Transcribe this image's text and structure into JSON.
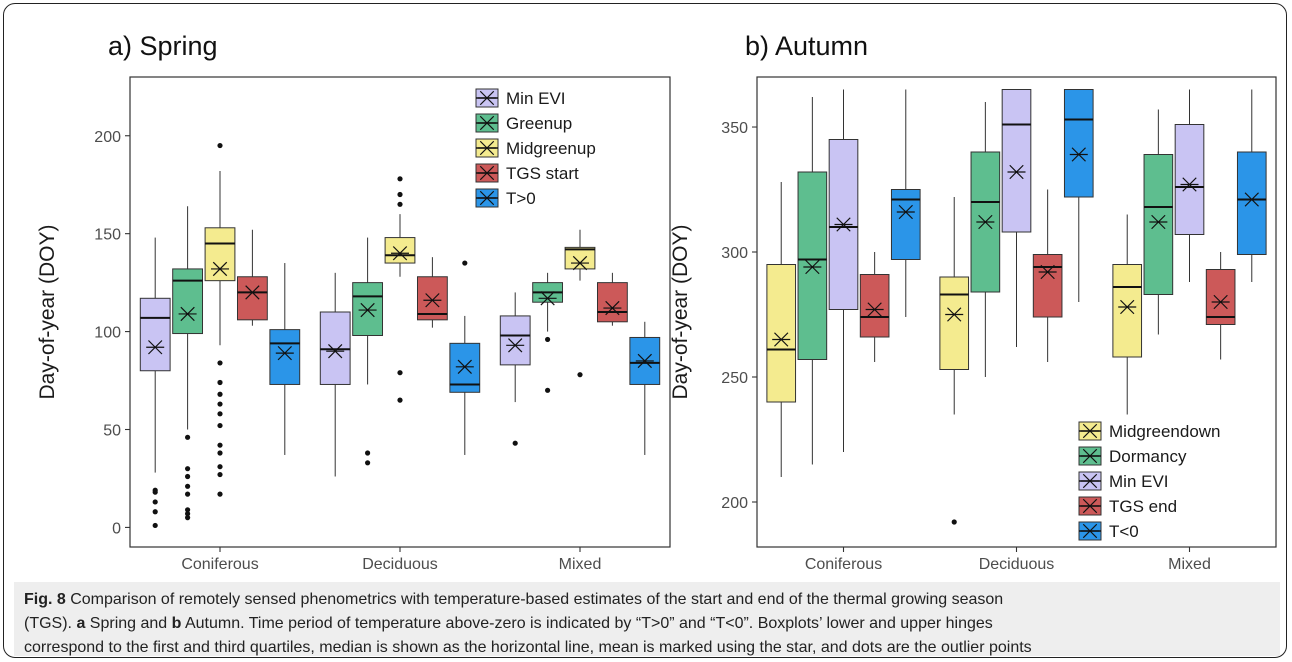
{
  "chart_data": [
    {
      "type": "box",
      "title": "a) Spring",
      "xlabel": "",
      "ylabel": "Day-of-year (DOY)",
      "ylim": [
        -10,
        230
      ],
      "yticks": [
        0,
        50,
        100,
        150,
        200
      ],
      "grid": false,
      "legend_position": "top-right",
      "categories": [
        "Coniferous",
        "Deciduous",
        "Mixed"
      ],
      "series": [
        {
          "name": "Min EVI",
          "color": "#c9c4f3",
          "boxes": [
            {
              "min": 28,
              "q1": 80,
              "median": 107,
              "q3": 117,
              "max": 148,
              "mean": 92,
              "outliers": [
                1,
                8,
                13,
                18,
                19
              ]
            },
            {
              "min": 26,
              "q1": 73,
              "median": 91,
              "q3": 110,
              "max": 130,
              "mean": 90,
              "outliers": []
            },
            {
              "min": 64,
              "q1": 83,
              "median": 98,
              "q3": 108,
              "max": 120,
              "mean": 93,
              "outliers": [
                43
              ]
            }
          ]
        },
        {
          "name": "Greenup",
          "color": "#5ebe8f",
          "boxes": [
            {
              "min": 50,
              "q1": 99,
              "median": 126,
              "q3": 132,
              "max": 164,
              "mean": 109,
              "outliers": [
                5,
                7,
                9,
                17,
                21,
                26,
                30,
                46
              ]
            },
            {
              "min": 73,
              "q1": 98,
              "median": 118,
              "q3": 125,
              "max": 148,
              "mean": 111,
              "outliers": [
                33,
                38
              ]
            },
            {
              "min": 100,
              "q1": 115,
              "median": 120,
              "q3": 125,
              "max": 130,
              "mean": 117,
              "outliers": [
                70,
                96
              ]
            }
          ]
        },
        {
          "name": "Midgreenup",
          "color": "#f4eb8f",
          "boxes": [
            {
              "min": 93,
              "q1": 126,
              "median": 145,
              "q3": 153,
              "max": 182,
              "mean": 132,
              "outliers": [
                17,
                27,
                31,
                38,
                42,
                52,
                58,
                63,
                68,
                74,
                84,
                195
              ]
            },
            {
              "min": 128,
              "q1": 135,
              "median": 139,
              "q3": 148,
              "max": 160,
              "mean": 140,
              "outliers": [
                65,
                79,
                165,
                170,
                178
              ]
            },
            {
              "min": 126,
              "q1": 132,
              "median": 142,
              "q3": 143,
              "max": 152,
              "mean": 135,
              "outliers": [
                78
              ]
            }
          ]
        },
        {
          "name": "TGS start",
          "color": "#cc5959",
          "boxes": [
            {
              "min": 103,
              "q1": 106,
              "median": 120,
              "q3": 128,
              "max": 152,
              "mean": 120,
              "outliers": []
            },
            {
              "min": 102,
              "q1": 106,
              "median": 109,
              "q3": 128,
              "max": 138,
              "mean": 116,
              "outliers": []
            },
            {
              "min": 103,
              "q1": 105,
              "median": 110,
              "q3": 125,
              "max": 130,
              "mean": 112,
              "outliers": []
            }
          ]
        },
        {
          "name": "T>0",
          "color": "#2b95e8",
          "boxes": [
            {
              "min": 37,
              "q1": 73,
              "median": 94,
              "q3": 101,
              "max": 135,
              "mean": 89,
              "outliers": []
            },
            {
              "min": 37,
              "q1": 69,
              "median": 73,
              "q3": 94,
              "max": 108,
              "mean": 82,
              "outliers": [
                135
              ]
            },
            {
              "min": 37,
              "q1": 73,
              "median": 84,
              "q3": 97,
              "max": 105,
              "mean": 85,
              "outliers": []
            }
          ]
        }
      ]
    },
    {
      "type": "box",
      "title": "b) Autumn",
      "xlabel": "",
      "ylabel": "Day-of-year (DOY)",
      "ylim": [
        182,
        370
      ],
      "yticks": [
        200,
        250,
        300,
        350
      ],
      "grid": false,
      "legend_position": "bottom-right",
      "categories": [
        "Coniferous",
        "Deciduous",
        "Mixed"
      ],
      "series": [
        {
          "name": "Midgreendown",
          "color": "#f4eb8f",
          "boxes": [
            {
              "min": 210,
              "q1": 240,
              "median": 261,
              "q3": 295,
              "max": 328,
              "mean": 265,
              "outliers": []
            },
            {
              "min": 235,
              "q1": 253,
              "median": 283,
              "q3": 290,
              "max": 322,
              "mean": 275,
              "outliers": [
                192
              ]
            },
            {
              "min": 235,
              "q1": 258,
              "median": 286,
              "q3": 295,
              "max": 315,
              "mean": 278,
              "outliers": []
            }
          ]
        },
        {
          "name": "Dormancy",
          "color": "#5ebe8f",
          "boxes": [
            {
              "min": 215,
              "q1": 257,
              "median": 297,
              "q3": 332,
              "max": 362,
              "mean": 294,
              "outliers": []
            },
            {
              "min": 250,
              "q1": 284,
              "median": 320,
              "q3": 340,
              "max": 360,
              "mean": 312,
              "outliers": []
            },
            {
              "min": 267,
              "q1": 283,
              "median": 318,
              "q3": 339,
              "max": 357,
              "mean": 312,
              "outliers": []
            }
          ]
        },
        {
          "name": "Min EVI",
          "color": "#c9c4f3",
          "boxes": [
            {
              "min": 220,
              "q1": 277,
              "median": 310,
              "q3": 345,
              "max": 365,
              "mean": 311,
              "outliers": []
            },
            {
              "min": 262,
              "q1": 308,
              "median": 351,
              "q3": 365,
              "max": 365,
              "mean": 332,
              "outliers": []
            },
            {
              "min": 288,
              "q1": 307,
              "median": 326,
              "q3": 351,
              "max": 365,
              "mean": 327,
              "outliers": []
            }
          ]
        },
        {
          "name": "TGS end",
          "color": "#cc5959",
          "boxes": [
            {
              "min": 256,
              "q1": 266,
              "median": 274,
              "q3": 291,
              "max": 300,
              "mean": 277,
              "outliers": []
            },
            {
              "min": 256,
              "q1": 274,
              "median": 294,
              "q3": 299,
              "max": 325,
              "mean": 292,
              "outliers": []
            },
            {
              "min": 257,
              "q1": 271,
              "median": 274,
              "q3": 293,
              "max": 300,
              "mean": 280,
              "outliers": []
            }
          ]
        },
        {
          "name": "T<0",
          "color": "#2b95e8",
          "boxes": [
            {
              "min": 274,
              "q1": 297,
              "median": 321,
              "q3": 325,
              "max": 365,
              "mean": 316,
              "outliers": []
            },
            {
              "min": 280,
              "q1": 322,
              "median": 353,
              "q3": 365,
              "max": 365,
              "mean": 339,
              "outliers": []
            },
            {
              "min": 288,
              "q1": 299,
              "median": 321,
              "q3": 340,
              "max": 365,
              "mean": 321,
              "outliers": []
            }
          ]
        }
      ]
    }
  ],
  "caption": {
    "fig_label": "Fig. 8",
    "line1": " Comparison of remotely sensed phenometrics with temperature-based estimates of the start and end of the thermal growing season",
    "line2_a": "(TGS). ",
    "bold_a": "a",
    "line2_b": " Spring and ",
    "bold_b": "b",
    "line2_c": " Autumn. Time period of temperature above-zero is indicated by “T>0” and “T<0”. Boxplots’ lower and upper hinges",
    "line3": "correspond to the first and third quartiles, median is shown as the horizontal line, mean is marked using the star, and dots are the outlier points"
  }
}
